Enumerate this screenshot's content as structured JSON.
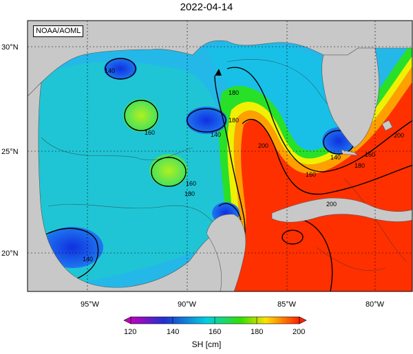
{
  "title": "2022-04-14",
  "credit": "NOAA/AOML",
  "axes": {
    "lat_labels": [
      "30°N",
      "25°N",
      "20°N"
    ],
    "lon_labels": [
      "95°W",
      "90°W",
      "85°W",
      "80°W"
    ]
  },
  "contour_labels": [
    "140",
    "160",
    "140",
    "160",
    "180",
    "180",
    "160",
    "200",
    "200",
    "140",
    "180",
    "160",
    "140",
    "180",
    "200"
  ],
  "colorbar": {
    "title": "SH [cm]",
    "ticks": [
      "120",
      "140",
      "160",
      "180",
      "200"
    ],
    "range": [
      120,
      200
    ],
    "colors": [
      "#c000c0",
      "#2030d0",
      "#00d0e0",
      "#30e000",
      "#ffe000",
      "#ff2000"
    ]
  },
  "colors": {
    "land": "#c8c8c8",
    "gulf_low": "#1e46e6",
    "gulf_mid": "#20c8d8",
    "loop_current": "#ff3000"
  }
}
